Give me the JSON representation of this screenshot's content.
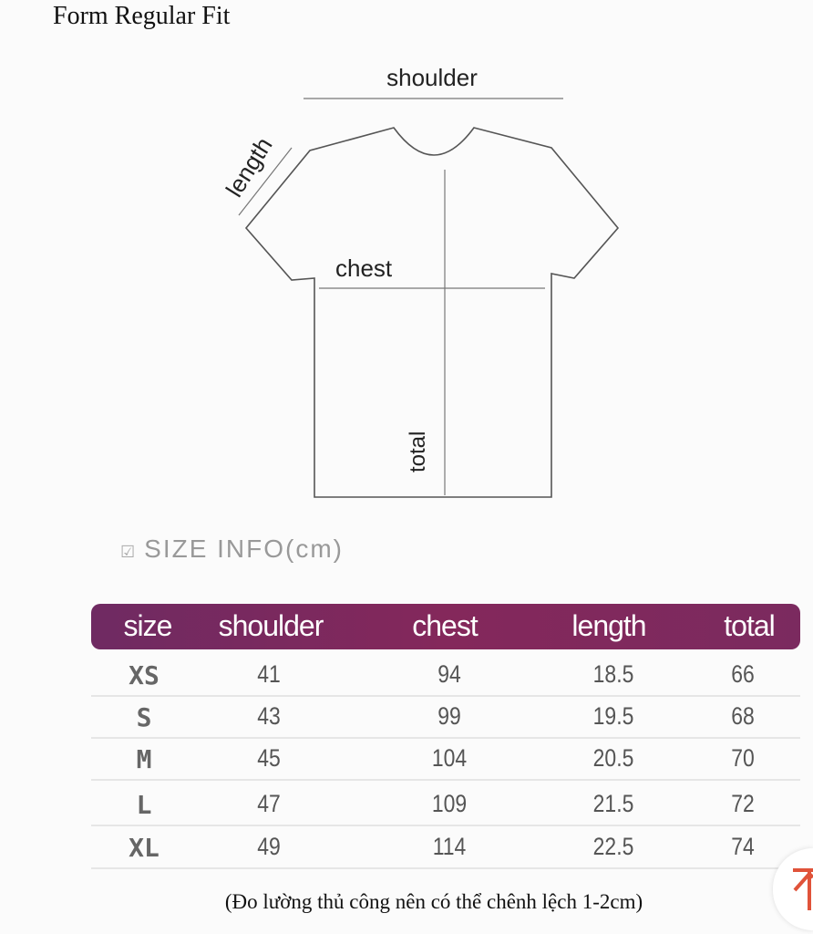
{
  "title": "Form Regular Fit",
  "diagram": {
    "shoulder": "shoulder",
    "length": "length",
    "chest": "chest",
    "total": "total"
  },
  "size_info": "SIZE INFO(cm)",
  "table": {
    "headers": [
      "size",
      "shoulder",
      "chest",
      "length",
      "total"
    ],
    "rows": [
      [
        "XS",
        "41",
        "94",
        "18.5",
        "66"
      ],
      [
        "S",
        "43",
        "99",
        "19.5",
        "68"
      ],
      [
        "M",
        "45",
        "104",
        "20.5",
        "70"
      ],
      [
        "L",
        "47",
        "109",
        "21.5",
        "72"
      ],
      [
        "XL",
        "49",
        "114",
        "22.5",
        "74"
      ]
    ]
  },
  "note": "(Đo lường thủ công nên có thể chênh lệch 1-2cm)",
  "colors": {
    "header": "#7a2a5f",
    "scroll_top": "#e0533a"
  },
  "scroll_top_icon": "arrow-up-icon"
}
